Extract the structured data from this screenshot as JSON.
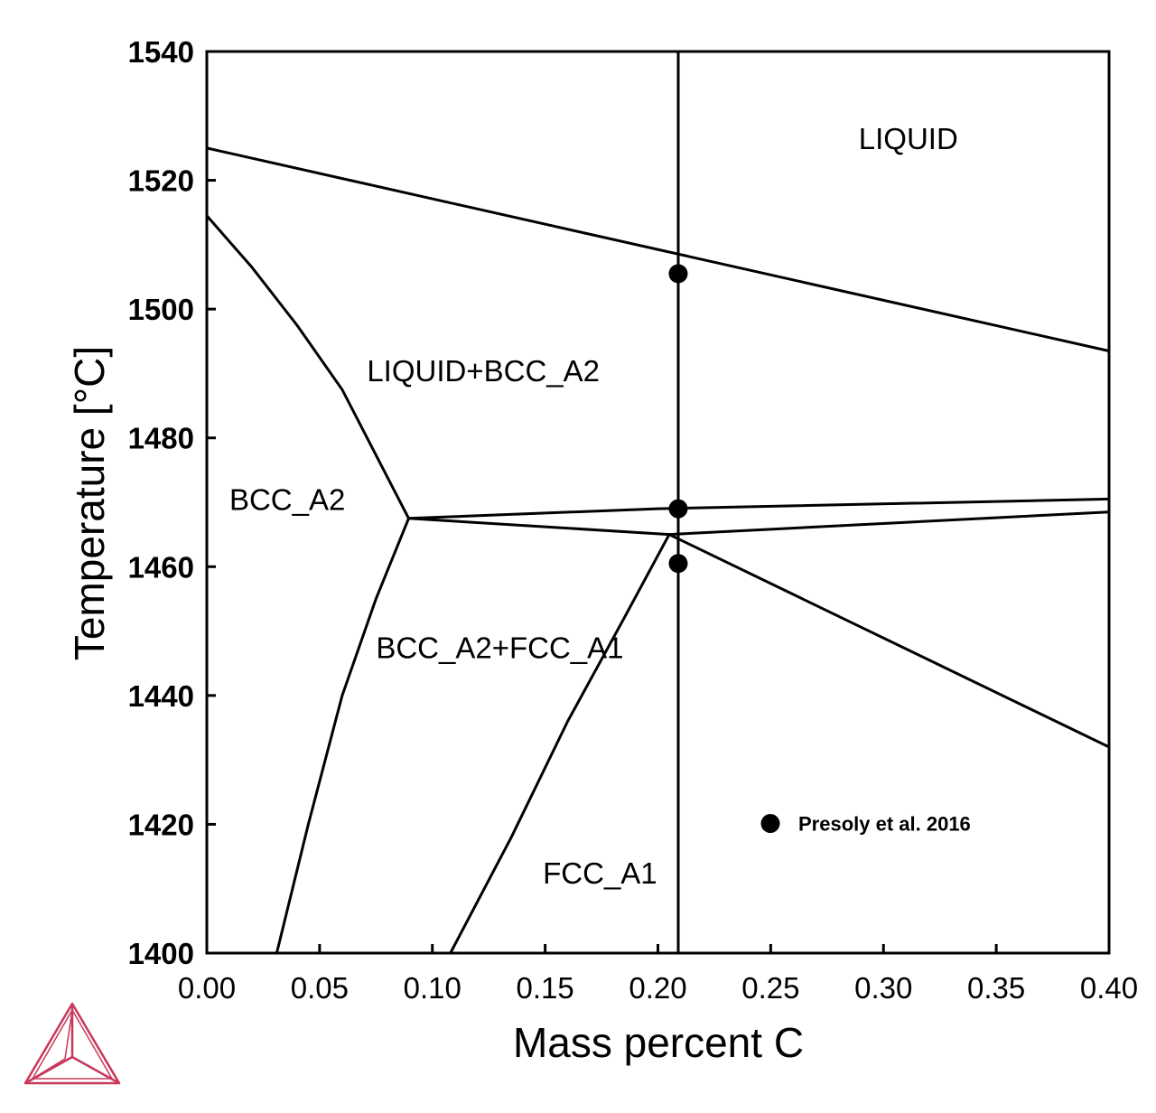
{
  "chart_data": {
    "type": "line",
    "title": "",
    "xlabel": "Mass percent C",
    "ylabel": "Temperature [°C]",
    "xlim": [
      0.0,
      0.4
    ],
    "ylim": [
      1400,
      1540
    ],
    "x_ticks": [
      0.0,
      0.05,
      0.1,
      0.15,
      0.2,
      0.25,
      0.3,
      0.35,
      0.4
    ],
    "x_tick_labels": [
      "0.00",
      "0.05",
      "0.10",
      "0.15",
      "0.20",
      "0.25",
      "0.30",
      "0.35",
      "0.40"
    ],
    "y_ticks": [
      1400,
      1420,
      1440,
      1460,
      1480,
      1500,
      1520,
      1540
    ],
    "y_tick_labels": [
      "1400",
      "1420",
      "1440",
      "1460",
      "1480",
      "1500",
      "1520",
      "1540"
    ],
    "grid": false,
    "series": [
      {
        "x": [
          0.0,
          0.4
        ],
        "y": [
          1525,
          1493.5
        ]
      },
      {
        "x": [
          0.0,
          0.02,
          0.04,
          0.06,
          0.0895
        ],
        "y": [
          1514.5,
          1506.5,
          1497.5,
          1487.5,
          1467.5
        ]
      },
      {
        "x": [
          0.0895,
          0.2,
          0.4
        ],
        "y": [
          1467.5,
          1469,
          1470.5
        ]
      },
      {
        "x": [
          0.0895,
          0.205
        ],
        "y": [
          1467.5,
          1465
        ]
      },
      {
        "x": [
          0.205,
          0.4
        ],
        "y": [
          1465,
          1468.5
        ]
      },
      {
        "x": [
          0.205,
          0.4
        ],
        "y": [
          1465,
          1432
        ]
      },
      {
        "x": [
          0.0895,
          0.075,
          0.06,
          0.045,
          0.031
        ],
        "y": [
          1467.5,
          1455,
          1440,
          1420,
          1400
        ]
      },
      {
        "x": [
          0.205,
          0.185,
          0.16,
          0.135,
          0.108
        ],
        "y": [
          1465,
          1452,
          1436,
          1418,
          1400
        ]
      },
      {
        "x": [
          0.209,
          0.209
        ],
        "y": [
          1400,
          1540
        ]
      },
      {
        "x": [
          0.209,
          0.209,
          0.209
        ],
        "y": [
          1505.5,
          1469,
          1460.5
        ],
        "mode": "markers"
      }
    ],
    "region_labels": [
      {
        "text": "LIQUID",
        "x": 0.289,
        "y": 1526.5
      },
      {
        "text": "LIQUID+BCC_A2",
        "x": 0.071,
        "y": 1490.5
      },
      {
        "text": "BCC_A2",
        "x": 0.01,
        "y": 1470.5
      },
      {
        "text": "BCC_A2+FCC_A1",
        "x": 0.075,
        "y": 1447.5
      },
      {
        "text": "FCC_A1",
        "x": 0.149,
        "y": 1412.5
      }
    ],
    "legend": {
      "position": "lower-right",
      "entries": [
        {
          "label": "Presoly et al. 2016",
          "marker": "circle"
        }
      ]
    },
    "colors": {
      "lines": "#000000",
      "logo": "#c8385c"
    }
  },
  "logo": {
    "icon": "thermo-calc-tetrahedron-icon"
  }
}
